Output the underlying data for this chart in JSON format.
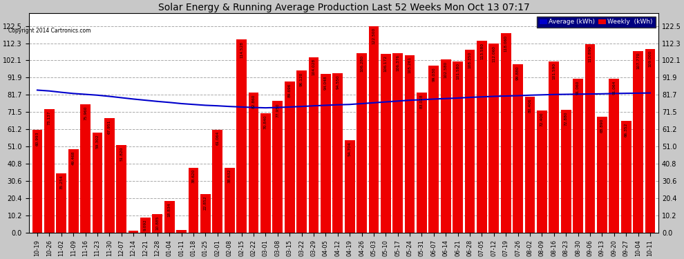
{
  "title": "Solar Energy & Running Average Production Last 52 Weeks Mon Oct 13 07:17",
  "copyright": "Copyright 2014 Cartronics.com",
  "bar_color": "#ee0000",
  "line_color": "#0000cc",
  "background_color": "#c8c8c8",
  "plot_bg_color": "#ffffff",
  "grid_color": "#aaaaaa",
  "yticks": [
    0.0,
    10.2,
    20.4,
    30.6,
    40.8,
    51.0,
    61.2,
    71.5,
    81.7,
    91.9,
    102.1,
    112.3,
    122.5
  ],
  "categories": [
    "10-19",
    "10-26",
    "11-02",
    "11-09",
    "11-16",
    "11-23",
    "11-30",
    "12-07",
    "12-14",
    "12-21",
    "12-28",
    "01-04",
    "01-11",
    "01-18",
    "01-25",
    "02-01",
    "02-08",
    "02-15",
    "02-22",
    "03-01",
    "03-08",
    "03-15",
    "03-22",
    "03-29",
    "04-05",
    "04-12",
    "04-19",
    "04-26",
    "05-03",
    "05-10",
    "05-17",
    "05-24",
    "05-31",
    "06-07",
    "06-14",
    "06-21",
    "06-28",
    "07-05",
    "07-12",
    "07-19",
    "07-26",
    "08-02",
    "08-09",
    "08-16",
    "08-23",
    "08-30",
    "09-06",
    "09-13",
    "09-20",
    "09-27",
    "10-04",
    "10-11"
  ],
  "weekly_values": [
    60.993,
    73.137,
    35.254,
    49.468,
    75.96,
    59.302,
    67.951,
    51.82,
    1.053,
    9.092,
    10.885,
    18.834,
    1.752,
    38.62,
    22.852,
    61.064,
    38.632,
    114.528,
    82.86,
    70.84,
    77.95,
    89.696,
    96.12,
    104.028,
    94.048,
    94.55,
    54.704,
    106.28,
    122.5,
    106.172,
    106.376,
    105.261,
    83.028,
    99.03,
    102.58,
    101.58,
    108.35,
    113.58,
    112.06,
    118.06,
    99.88,
    80.406,
    72.4,
    101.59,
    72.88,
    91.06,
    111.89,
    68.89,
    91.064,
    66.352,
    107.77,
    109.0
  ],
  "average_values": [
    84.5,
    84.0,
    83.2,
    82.5,
    82.0,
    81.5,
    80.8,
    80.0,
    79.2,
    78.5,
    77.8,
    77.2,
    76.5,
    76.0,
    75.5,
    75.2,
    74.8,
    74.5,
    74.2,
    74.0,
    74.2,
    74.5,
    74.8,
    75.2,
    75.5,
    75.8,
    76.0,
    76.5,
    77.0,
    77.5,
    78.0,
    78.5,
    78.8,
    79.2,
    79.5,
    79.8,
    80.2,
    80.5,
    80.8,
    81.0,
    81.2,
    81.5,
    81.7,
    81.9,
    82.0,
    82.1,
    82.2,
    82.3,
    82.5,
    82.6,
    82.7,
    82.8
  ],
  "legend_avg_color": "#0000cc",
  "legend_avg_label": "Average (kWh)",
  "legend_weekly_color": "#ee0000",
  "legend_weekly_label": "Weekly  (kWh)"
}
